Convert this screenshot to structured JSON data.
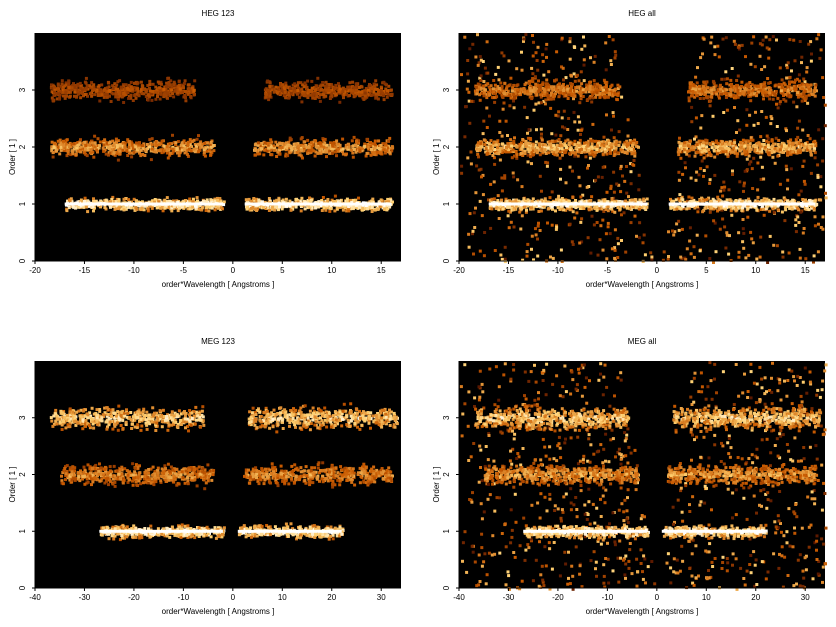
{
  "colors": {
    "background": "#000000",
    "low": "#5a1800",
    "mid": "#c85a00",
    "high": "#ffd070",
    "peak": "#ffffff"
  },
  "chart_data": [
    {
      "type": "heatmap",
      "title": "HEG 123",
      "xlabel": "order*Wavelength [ Angstroms ]",
      "ylabel": "Order [ 1 ]",
      "xlim": [
        -20,
        17
      ],
      "ylim": [
        0,
        4
      ],
      "xticks": [
        -20,
        -15,
        -10,
        -5,
        0,
        5,
        10,
        15
      ],
      "yticks": [
        0,
        1,
        2,
        3
      ],
      "bands": [
        {
          "order": 1,
          "x_ranges": [
            [
              -17,
              -1
            ],
            [
              1.2,
              16
            ]
          ],
          "intensity": 1.0,
          "spread": 0.05
        },
        {
          "order": 2,
          "x_ranges": [
            [
              -18.5,
              -2
            ],
            [
              2,
              16
            ]
          ],
          "intensity": 0.6,
          "spread": 0.07
        },
        {
          "order": 3,
          "x_ranges": [
            [
              -18.5,
              -4
            ],
            [
              3,
              16
            ]
          ],
          "intensity": 0.3,
          "spread": 0.08
        }
      ],
      "background_level": 0.0,
      "wedge_half_width": 0
    },
    {
      "type": "heatmap",
      "title": "HEG all",
      "xlabel": "order*Wavelength [ Angstroms ]",
      "ylabel": "Order [ 1 ]",
      "xlim": [
        -20,
        17
      ],
      "ylim": [
        0,
        4
      ],
      "xticks": [
        -20,
        -15,
        -10,
        -5,
        0,
        5,
        10,
        15
      ],
      "yticks": [
        0,
        1,
        2,
        3
      ],
      "bands": [
        {
          "order": 1,
          "x_ranges": [
            [
              -17,
              -1
            ],
            [
              1.2,
              16
            ]
          ],
          "intensity": 1.0,
          "spread": 0.05
        },
        {
          "order": 2,
          "x_ranges": [
            [
              -18.5,
              -2
            ],
            [
              2,
              16
            ]
          ],
          "intensity": 0.7,
          "spread": 0.07
        },
        {
          "order": 3,
          "x_ranges": [
            [
              -18.5,
              -4
            ],
            [
              3,
              16
            ]
          ],
          "intensity": 0.5,
          "spread": 0.08
        }
      ],
      "background_level": 0.35,
      "wedge_half_width": 4.2
    },
    {
      "type": "heatmap",
      "title": "MEG 123",
      "xlabel": "order*Wavelength [ Angstroms ]",
      "ylabel": "Order [ 1 ]",
      "xlim": [
        -40,
        34
      ],
      "ylim": [
        0,
        4
      ],
      "xticks": [
        -40,
        -30,
        -20,
        -10,
        0,
        10,
        20,
        30
      ],
      "yticks": [
        0,
        1,
        2,
        3
      ],
      "bands": [
        {
          "order": 1,
          "x_ranges": [
            [
              -27,
              -2
            ],
            [
              1,
              22
            ]
          ],
          "intensity": 1.0,
          "spread": 0.05
        },
        {
          "order": 2,
          "x_ranges": [
            [
              -35,
              -4
            ],
            [
              2,
              32
            ]
          ],
          "intensity": 0.55,
          "spread": 0.08
        },
        {
          "order": 3,
          "x_ranges": [
            [
              -37,
              -6
            ],
            [
              3,
              33
            ]
          ],
          "intensity": 0.8,
          "spread": 0.09
        }
      ],
      "background_level": 0.0,
      "wedge_half_width": 0
    },
    {
      "type": "heatmap",
      "title": "MEG all",
      "xlabel": "order*Wavelength [ Angstroms ]",
      "ylabel": "Order [ 1 ]",
      "xlim": [
        -40,
        34
      ],
      "ylim": [
        0,
        4
      ],
      "xticks": [
        -40,
        -30,
        -20,
        -10,
        0,
        10,
        20,
        30
      ],
      "yticks": [
        0,
        1,
        2,
        3
      ],
      "bands": [
        {
          "order": 1,
          "x_ranges": [
            [
              -27,
              -2
            ],
            [
              1,
              22
            ]
          ],
          "intensity": 1.0,
          "spread": 0.05
        },
        {
          "order": 2,
          "x_ranges": [
            [
              -35,
              -4
            ],
            [
              2,
              32
            ]
          ],
          "intensity": 0.6,
          "spread": 0.08
        },
        {
          "order": 3,
          "x_ranges": [
            [
              -37,
              -6
            ],
            [
              3,
              33
            ]
          ],
          "intensity": 0.8,
          "spread": 0.09
        }
      ],
      "background_level": 0.4,
      "wedge_half_width": 7
    }
  ]
}
